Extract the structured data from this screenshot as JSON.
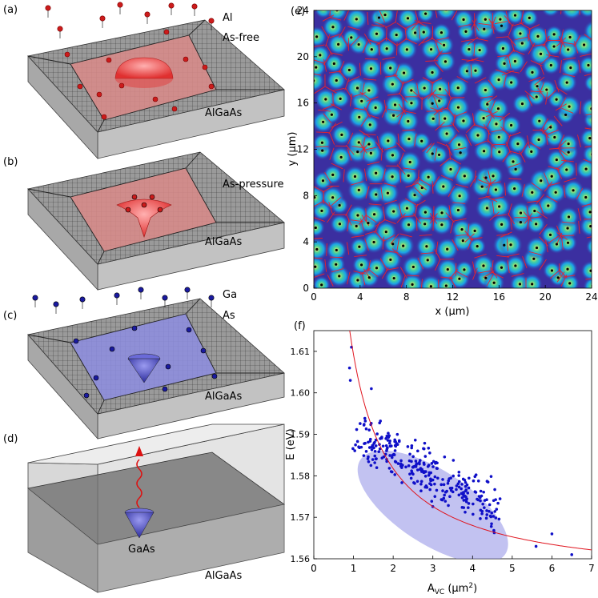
{
  "figure": {
    "panels": {
      "a": {
        "label": "(a)",
        "text1": "Al",
        "text2": "As-free",
        "substrate": "AlGaAs"
      },
      "b": {
        "label": "(b)",
        "text1": "As-pressure",
        "substrate": "AlGaAs"
      },
      "c": {
        "label": "(c)",
        "text1": "Ga",
        "text2": "As",
        "substrate": "AlGaAs"
      },
      "d": {
        "label": "(d)",
        "dot": "GaAs",
        "substrate": "AlGaAs"
      },
      "e": {
        "label": "(e)"
      },
      "f": {
        "label": "(f)"
      }
    }
  },
  "chart_data": [
    {
      "type": "heatmap",
      "panel": "e",
      "title": "",
      "xlabel": "x (μm)",
      "ylabel": "y (μm)",
      "xlim": [
        0,
        24
      ],
      "ylim": [
        0,
        24
      ],
      "xticks": [
        "0",
        "4",
        "8",
        "12",
        "16",
        "20",
        "24"
      ],
      "yticks": [
        "0",
        "4",
        "8",
        "12",
        "16",
        "20",
        "24"
      ],
      "description_series": "Voronoi cells around quantum dot positions",
      "colors": {
        "background": "#3b2fa0",
        "cell_edge": "#e8232b",
        "dot": "#000000"
      }
    },
    {
      "type": "scatter",
      "panel": "f",
      "xlabel_main": "A",
      "xlabel_sub": "VC",
      "xlabel_unit": "(μm",
      "xlabel_sup": "2",
      "xlabel_close": ")",
      "ylabel": "E (eV)",
      "xlim": [
        0,
        7
      ],
      "ylim": [
        1.56,
        1.615
      ],
      "xticks": [
        "0",
        "1",
        "2",
        "3",
        "4",
        "5",
        "6",
        "7"
      ],
      "yticks": [
        "1.56",
        "1.57",
        "1.58",
        "1.59",
        "1.60",
        "1.61"
      ],
      "fit_curve": {
        "form": "E = 1.5543 + 0.0549 / A",
        "color": "#e0141e"
      },
      "ellipse": {
        "center": [
          3.0,
          1.5725
        ],
        "color": "#8f8fe6"
      },
      "points_color": "#1010c8",
      "notable_points": [
        [
          0.95,
          1.611
        ],
        [
          0.9,
          1.606
        ],
        [
          0.92,
          1.603
        ],
        [
          1.45,
          1.601
        ],
        [
          6.5,
          1.561
        ],
        [
          6.0,
          1.566
        ],
        [
          5.6,
          1.563
        ]
      ]
    }
  ]
}
